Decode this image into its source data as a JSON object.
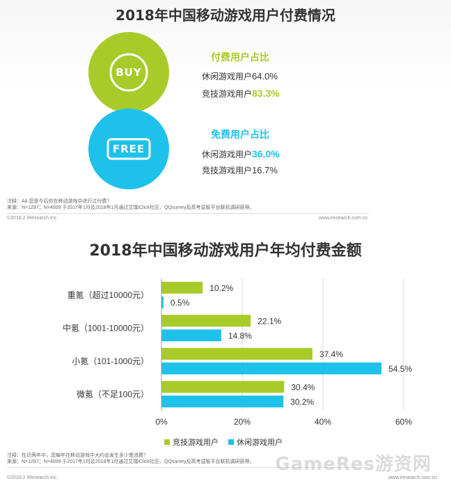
{
  "top": {
    "title": "2018年中国移动游戏用户付费情况",
    "buy_icon_text": "BUY",
    "free_icon_text": "FREE",
    "paid": {
      "heading": "付费用户占比",
      "row1_label": "休闲游戏用户",
      "row1_value": "64.0%",
      "row2_label": "竞技游戏用户",
      "row2_value": "83.3%"
    },
    "free": {
      "heading": "免费用户占比",
      "row1_label": "休闲游戏用户",
      "row1_value": "36.0%",
      "row2_label": "竞技游戏用户",
      "row2_value": "16.7%"
    },
    "note_line1": "注释：A8.您是今后你在移动游戏中进行过付费？",
    "note_line2": "来源：N=1297；N=4009 于2017年1月及2018年1月通过艾瑞iClick社区、QQsurvey及高考益智平台联机调研获得。",
    "copyright": "©2018.2 iResearch Inc.",
    "site": "www.iresearch.com.cn"
  },
  "bottom": {
    "title": "2018年中国移动游戏用户年均付费金额",
    "note_line1": "注释：在近两年中，您每年在移动游戏中大约会发生多少笔消费？",
    "note_line2": "来源：N=1297；N=4009 于2017年1月及2018年1月通过艾瑞iClick社区、QQsurvey及高考益智平台联机调研获得。",
    "copyright": "©2018.2 iResearch Inc.",
    "site": "www.iresearch.com.cn",
    "watermark": "GameRes游资网"
  },
  "colors": {
    "green": "#a9cb2a",
    "cyan": "#1ec1ea",
    "grid": "#d8d8d8"
  },
  "chart_data": {
    "type": "bar",
    "orientation": "horizontal",
    "categories": [
      "重氪（超过10000元）",
      "中氪（1001-10000元）",
      "小氪（101-1000元）",
      "微氪（不足100元）"
    ],
    "series": [
      {
        "name": "竞技游戏用户",
        "values": [
          10.2,
          22.1,
          37.4,
          30.4
        ],
        "labels": [
          "10.2%",
          "22.1%",
          "37.4%",
          "30.4%"
        ]
      },
      {
        "name": "休闲游戏用户",
        "values": [
          0.5,
          14.8,
          54.5,
          30.2
        ],
        "labels": [
          "0.5%",
          "14.8%",
          "54.5%",
          "30.2%"
        ]
      }
    ],
    "xlim": [
      0,
      60
    ],
    "xticks": [
      "0%",
      "20%",
      "40%",
      "60%"
    ],
    "grid": "vertical",
    "legend": "bottom"
  }
}
